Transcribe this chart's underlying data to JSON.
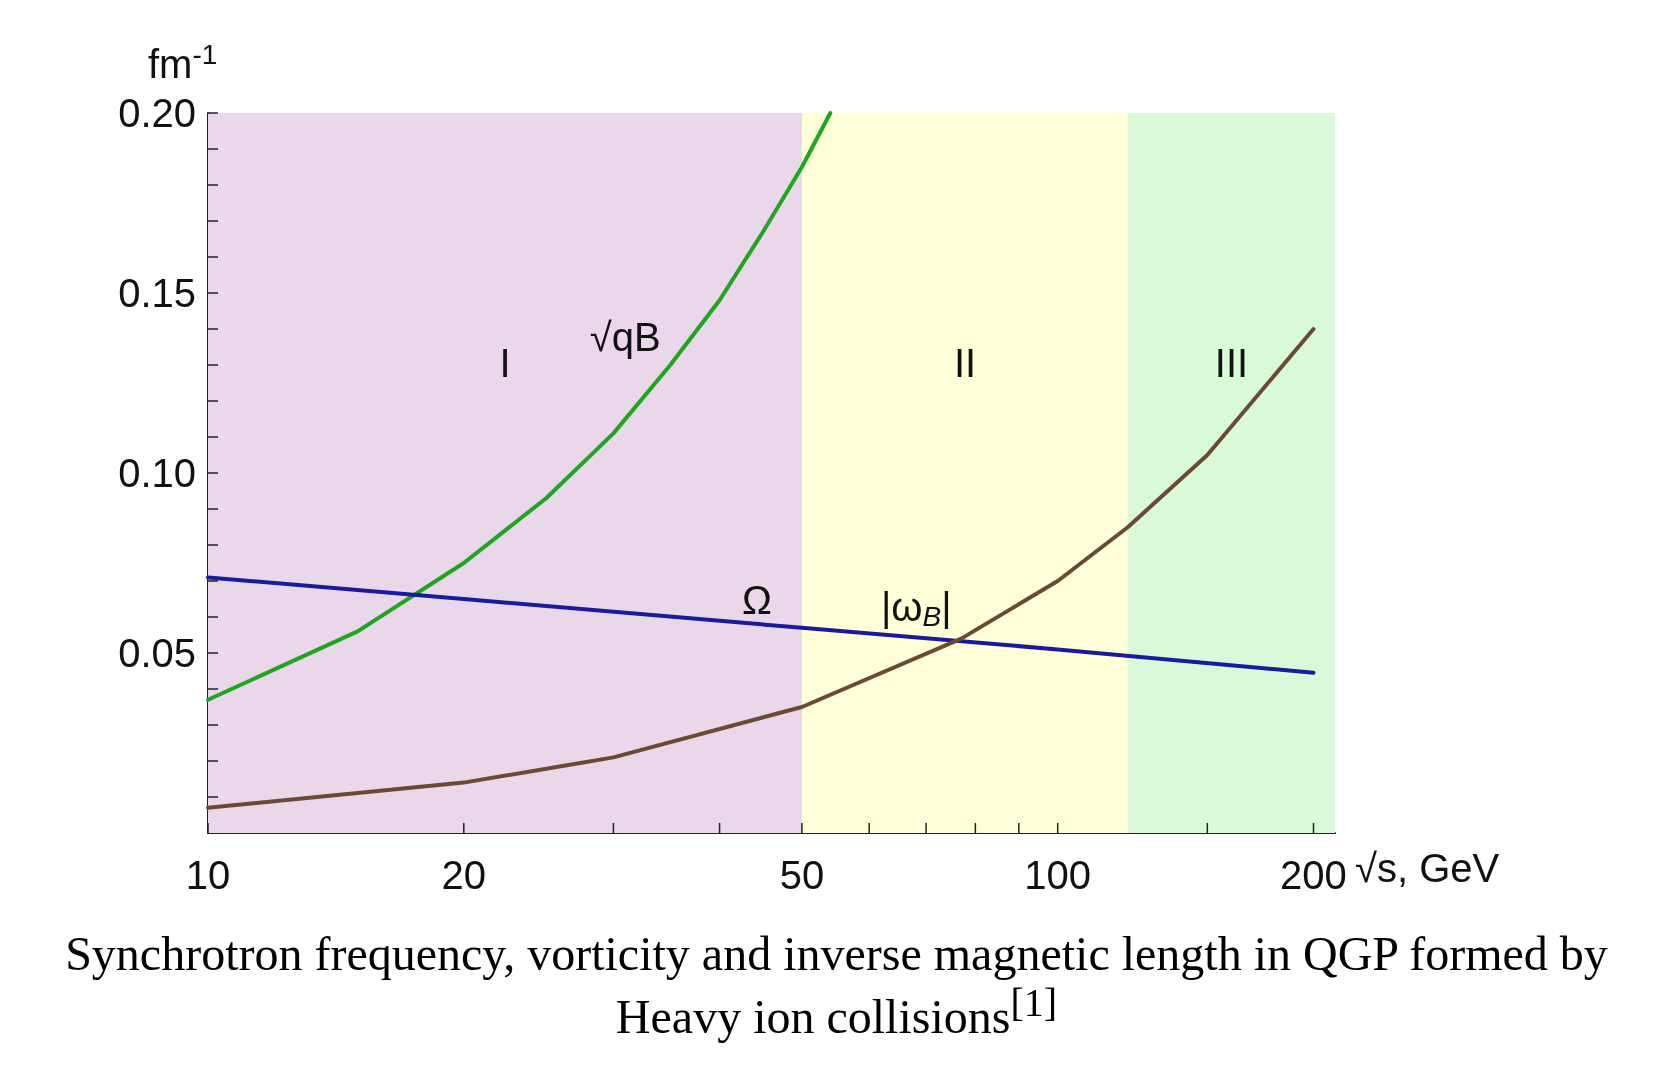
{
  "chart_data": {
    "type": "line",
    "xlabel": "√s, GeV",
    "ylabel": "fm$^{-1}$",
    "log": "x",
    "xlim": [
      10,
      212
    ],
    "ylim": [
      0,
      0.2
    ],
    "xticks": [
      10,
      20,
      {
        "value": 30,
        "label": null
      },
      {
        "value": 40,
        "label": null
      },
      50,
      {
        "value": 60,
        "label": null
      },
      {
        "value": 70,
        "label": null
      },
      {
        "value": 80,
        "label": null
      },
      {
        "value": 90,
        "label": null
      },
      100,
      {
        "value": 150,
        "label": null
      },
      200
    ],
    "yticks": [
      {
        "value": 0.01,
        "label": null
      },
      {
        "value": 0.02,
        "label": null
      },
      {
        "value": 0.03,
        "label": null
      },
      {
        "value": 0.04,
        "label": null
      },
      {
        "value": 0.05,
        "label": "0.05"
      },
      {
        "value": 0.06,
        "label": null
      },
      {
        "value": 0.07,
        "label": null
      },
      {
        "value": 0.08,
        "label": null
      },
      {
        "value": 0.09,
        "label": null
      },
      {
        "value": 0.1,
        "label": "0.10"
      },
      {
        "value": 0.11,
        "label": null
      },
      {
        "value": 0.12,
        "label": null
      },
      {
        "value": 0.13,
        "label": null
      },
      {
        "value": 0.14,
        "label": null
      },
      {
        "value": 0.15,
        "label": "0.15"
      },
      {
        "value": 0.16,
        "label": null
      },
      {
        "value": 0.17,
        "label": null
      },
      {
        "value": 0.18,
        "label": null
      },
      {
        "value": 0.19,
        "label": null
      },
      {
        "value": 0.2,
        "label": "0.20"
      }
    ],
    "grid": false,
    "legend": false,
    "marker": "none",
    "line_style": "solid",
    "series": [
      {
        "name": "√qB",
        "color": "#1fa51f",
        "x": [
          10,
          15,
          20,
          25,
          30,
          35,
          40,
          45,
          50,
          54
        ],
        "values": [
          0.037,
          0.056,
          0.075,
          0.093,
          0.111,
          0.13,
          0.148,
          0.167,
          0.185,
          0.2
        ]
      },
      {
        "name": "Ω",
        "color": "#1a1aa0",
        "x": [
          10,
          20,
          50,
          100,
          200
        ],
        "values": [
          0.071,
          0.065,
          0.057,
          0.051,
          0.0445
        ]
      },
      {
        "name": "|ω$_{B}$|",
        "color": "#6b4a35",
        "x": [
          10,
          20,
          30,
          50,
          77,
          100,
          121,
          150,
          200
        ],
        "values": [
          0.007,
          0.014,
          0.021,
          0.035,
          0.054,
          0.07,
          0.085,
          0.105,
          0.14
        ]
      }
    ],
    "bands": [
      {
        "axis": "x",
        "from": 10,
        "to": 50,
        "label": "I",
        "color": "#ead8ea"
      },
      {
        "axis": "x",
        "from": 50,
        "to": 121,
        "label": "II",
        "color": "#ffffd8"
      },
      {
        "axis": "x",
        "from": 121,
        "to": 212,
        "label": "III",
        "color": "#d8fad8"
      }
    ],
    "annotations": [
      "Synchrotron frequency, vorticity and inverse magnetic length in QGP formed by Heavy ion collisions$^{[1]}$"
    ]
  }
}
